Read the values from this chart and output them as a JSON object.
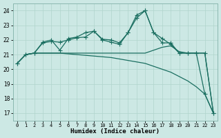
{
  "bg_color": "#cce8e4",
  "grid_color": "#b0d4cc",
  "line_color": "#1a6e60",
  "xlabel": "Humidex (Indice chaleur)",
  "xlim": [
    -0.5,
    23.5
  ],
  "ylim": [
    16.5,
    24.5
  ],
  "yticks": [
    17,
    18,
    19,
    20,
    21,
    22,
    23,
    24
  ],
  "xticks": [
    0,
    1,
    2,
    3,
    4,
    5,
    6,
    7,
    8,
    9,
    10,
    11,
    12,
    13,
    14,
    15,
    16,
    17,
    18,
    19,
    20,
    21,
    22,
    23
  ],
  "series": [
    {
      "x": [
        0,
        1,
        2,
        3,
        4,
        5,
        6,
        7,
        8,
        9,
        10,
        11,
        12,
        13,
        14,
        15,
        16,
        17,
        18,
        19,
        20,
        21,
        22,
        23
      ],
      "y": [
        20.4,
        21.0,
        21.1,
        21.1,
        21.1,
        21.1,
        21.05,
        21.0,
        20.95,
        20.9,
        20.85,
        20.8,
        20.7,
        20.6,
        20.5,
        20.4,
        20.2,
        20.0,
        19.8,
        19.5,
        19.2,
        18.8,
        18.3,
        17.0
      ],
      "marker": null,
      "lw": 0.9
    },
    {
      "x": [
        0,
        1,
        2,
        3,
        4,
        5,
        6,
        7,
        8,
        9,
        10,
        11,
        12,
        13,
        14,
        15,
        16,
        17,
        18,
        19,
        20,
        21,
        22,
        23
      ],
      "y": [
        20.4,
        21.0,
        21.1,
        21.1,
        21.1,
        21.1,
        21.1,
        21.1,
        21.1,
        21.1,
        21.1,
        21.1,
        21.1,
        21.1,
        21.1,
        21.1,
        21.3,
        21.5,
        21.6,
        21.2,
        21.1,
        21.1,
        21.1,
        17.0
      ],
      "marker": null,
      "lw": 0.9
    },
    {
      "x": [
        0,
        1,
        2,
        3,
        4,
        5,
        6,
        7,
        8,
        9,
        10,
        11,
        12,
        13,
        14,
        15,
        16,
        17,
        18,
        19,
        20,
        21,
        22,
        23
      ],
      "y": [
        20.4,
        21.0,
        21.1,
        21.8,
        21.9,
        21.85,
        22.0,
        22.15,
        22.2,
        22.6,
        22.05,
        22.0,
        21.8,
        22.5,
        23.5,
        24.0,
        22.5,
        22.1,
        21.7,
        21.1,
        21.1,
        21.1,
        21.1,
        17.0
      ],
      "marker": "+",
      "ms": 4.0,
      "lw": 0.9
    },
    {
      "x": [
        0,
        1,
        2,
        3,
        4,
        5,
        6,
        7,
        8,
        9,
        10,
        11,
        12,
        13,
        14,
        15,
        16,
        17,
        18,
        19,
        20,
        21,
        22,
        23
      ],
      "y": [
        20.4,
        21.0,
        21.1,
        21.85,
        22.0,
        21.3,
        22.1,
        22.2,
        22.5,
        22.6,
        22.0,
        21.85,
        21.7,
        22.5,
        23.7,
        24.0,
        22.5,
        21.8,
        21.8,
        21.1,
        21.1,
        21.1,
        18.3,
        17.0
      ],
      "marker": "+",
      "ms": 4.0,
      "lw": 0.9
    }
  ]
}
